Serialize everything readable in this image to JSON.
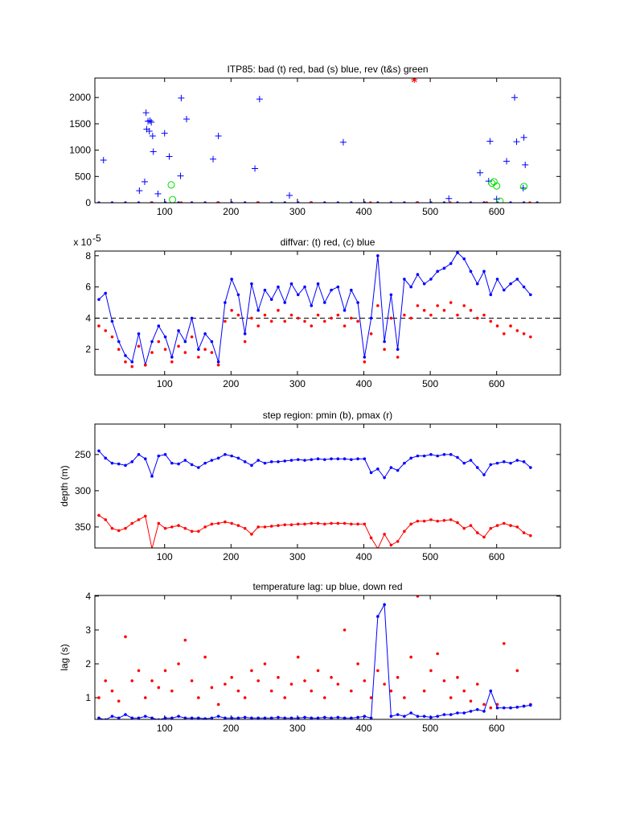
{
  "chart_data": [
    {
      "type": "scatter",
      "title": "ITP85: bad (t) red, bad (s) blue, rev (t&s) green",
      "xlim": [
        -5,
        696
      ],
      "xticks": [
        100,
        200,
        300,
        400,
        500,
        600
      ],
      "ylim": [
        0,
        2370
      ],
      "yticks": [
        0,
        500,
        1000,
        1500,
        2000
      ],
      "series": [
        {
          "color": "#0000ff",
          "marker": "dot",
          "x": [
            1,
            21,
            41,
            61,
            81,
            101,
            121,
            141,
            161,
            181,
            201,
            221,
            241,
            261,
            281,
            301,
            321,
            341,
            361,
            381,
            401,
            421,
            441,
            461,
            481,
            501,
            521,
            541,
            561,
            581,
            601,
            621,
            641,
            661
          ],
          "values": [
            0,
            0,
            0,
            0,
            0,
            0,
            0,
            0,
            0,
            0,
            0,
            0,
            0,
            0,
            0,
            0,
            0,
            0,
            0,
            0,
            0,
            0,
            0,
            0,
            0,
            0,
            0,
            0,
            0,
            0,
            0,
            0,
            0,
            0
          ]
        },
        {
          "color": "#ff0000",
          "marker": "dot",
          "x": [
            80,
            125,
            180,
            240,
            320,
            410,
            480,
            530,
            585,
            650
          ],
          "values": [
            0,
            0,
            0,
            0,
            0,
            0,
            0,
            0,
            0,
            0
          ]
        },
        {
          "color": "#0000ff",
          "marker": "plus",
          "x": [
            8,
            62,
            70,
            72,
            73,
            75,
            77,
            78,
            80,
            82,
            83,
            90,
            100,
            107,
            125,
            124,
            133,
            173,
            181,
            236,
            243,
            288,
            369,
            528,
            575,
            588,
            590,
            615,
            627,
            630,
            641,
            643,
            640,
            600
          ],
          "values": [
            810,
            230,
            400,
            1710,
            1400,
            1550,
            1360,
            1560,
            1530,
            1270,
            970,
            170,
            1320,
            880,
            1990,
            510,
            1590,
            830,
            1270,
            650,
            1970,
            140,
            1150,
            80,
            570,
            410,
            1170,
            790,
            2000,
            1160,
            1240,
            720,
            280,
            70
          ]
        },
        {
          "color": "#00dd00",
          "marker": "circle",
          "x": [
            110,
            112,
            593,
            596,
            600,
            641,
            605
          ],
          "values": [
            340,
            60,
            370,
            400,
            320,
            310,
            30
          ]
        },
        {
          "color": "#ff0000",
          "marker": "star",
          "x": [
            476
          ],
          "values": [
            2340
          ]
        }
      ]
    },
    {
      "type": "line",
      "title": "diffvar: (t) red, (c) blue",
      "y_scale": {
        "base": "x 10",
        "exponent": "-5"
      },
      "xlim": [
        -5,
        696
      ],
      "xticks": [
        100,
        200,
        300,
        400,
        500,
        600
      ],
      "ylim": [
        0.36,
        8.3
      ],
      "yticks": [
        2,
        4,
        6,
        8
      ],
      "hline": 4,
      "x": [
        1,
        11,
        21,
        31,
        41,
        51,
        61,
        71,
        81,
        91,
        101,
        111,
        121,
        131,
        141,
        151,
        161,
        171,
        181,
        191,
        201,
        211,
        221,
        231,
        241,
        251,
        261,
        271,
        281,
        291,
        301,
        311,
        321,
        331,
        341,
        351,
        361,
        371,
        381,
        391,
        401,
        411,
        421,
        431,
        441,
        451,
        461,
        471,
        481,
        491,
        501,
        511,
        521,
        531,
        541,
        551,
        561,
        571,
        581,
        591,
        601,
        611,
        621,
        631,
        641,
        651
      ],
      "series": [
        {
          "color": "#0000ff",
          "marker": "dot",
          "line": true,
          "values": [
            5.2,
            5.6,
            3.8,
            2.5,
            1.6,
            1.2,
            3.0,
            1.0,
            2.5,
            3.5,
            2.8,
            1.5,
            3.2,
            2.5,
            4.0,
            2.0,
            3.0,
            2.5,
            1.2,
            5.0,
            6.5,
            5.5,
            3.0,
            6.2,
            4.5,
            5.8,
            5.2,
            6.0,
            5.0,
            6.2,
            5.5,
            6.0,
            4.8,
            6.2,
            5.0,
            5.8,
            6.0,
            4.5,
            5.8,
            5.0,
            1.5,
            4.0,
            8.0,
            2.5,
            5.5,
            2.0,
            6.5,
            6.0,
            6.8,
            6.2,
            6.5,
            7.0,
            7.2,
            7.5,
            8.2,
            7.8,
            7.0,
            6.2,
            7.0,
            5.5,
            6.5,
            5.8,
            6.2,
            6.5,
            6.0,
            5.5
          ]
        },
        {
          "color": "#ff0000",
          "marker": "dot",
          "line": false,
          "values": [
            3.5,
            3.2,
            2.8,
            2.0,
            1.2,
            0.9,
            2.2,
            1.0,
            1.8,
            2.5,
            2.0,
            1.2,
            2.2,
            1.8,
            2.8,
            1.5,
            2.0,
            1.8,
            1.0,
            3.8,
            4.5,
            4.2,
            2.5,
            4.0,
            3.5,
            4.2,
            3.8,
            4.5,
            3.8,
            4.2,
            4.0,
            3.8,
            3.5,
            4.2,
            3.8,
            4.0,
            4.2,
            3.5,
            4.0,
            3.8,
            1.2,
            3.0,
            4.8,
            2.0,
            4.0,
            1.5,
            4.2,
            4.0,
            4.8,
            4.5,
            4.2,
            4.8,
            4.5,
            5.0,
            4.2,
            4.8,
            4.5,
            4.0,
            4.2,
            3.8,
            3.5,
            3.0,
            3.5,
            3.2,
            3.0,
            2.8
          ]
        }
      ]
    },
    {
      "type": "line",
      "title": "step region: pmin (b), pmax (r)",
      "ylabel": "depth (m)",
      "yreverse": true,
      "xlim": [
        -5,
        696
      ],
      "xticks": [
        100,
        200,
        300,
        400,
        500,
        600
      ],
      "ylim": [
        208,
        379
      ],
      "yticks": [
        250,
        300,
        350
      ],
      "x": [
        1,
        11,
        21,
        31,
        41,
        51,
        61,
        71,
        81,
        91,
        101,
        111,
        121,
        131,
        141,
        151,
        161,
        171,
        181,
        191,
        201,
        211,
        221,
        231,
        241,
        251,
        261,
        271,
        281,
        291,
        301,
        311,
        321,
        331,
        341,
        351,
        361,
        371,
        381,
        391,
        401,
        411,
        421,
        431,
        441,
        451,
        461,
        471,
        481,
        491,
        501,
        511,
        521,
        531,
        541,
        551,
        561,
        571,
        581,
        591,
        601,
        611,
        621,
        631,
        641,
        651
      ],
      "series": [
        {
          "color": "#0000ff",
          "marker": "dot",
          "line": true,
          "values": [
            245,
            255,
            262,
            263,
            265,
            260,
            250,
            256,
            280,
            252,
            250,
            262,
            263,
            258,
            264,
            268,
            262,
            258,
            255,
            250,
            252,
            255,
            260,
            265,
            258,
            262,
            260,
            260,
            259,
            258,
            257,
            258,
            257,
            256,
            257,
            256,
            256,
            256,
            257,
            256,
            256,
            275,
            270,
            282,
            268,
            272,
            262,
            255,
            252,
            252,
            250,
            252,
            250,
            250,
            254,
            262,
            258,
            268,
            278,
            264,
            262,
            260,
            262,
            258,
            260,
            268
          ]
        },
        {
          "color": "#ff0000",
          "marker": "dot",
          "line": true,
          "values": [
            334,
            340,
            352,
            355,
            352,
            345,
            340,
            335,
            380,
            345,
            352,
            350,
            348,
            352,
            356,
            356,
            350,
            346,
            345,
            343,
            345,
            348,
            352,
            360,
            350,
            350,
            349,
            348,
            347,
            347,
            346,
            346,
            345,
            345,
            346,
            345,
            345,
            345,
            346,
            346,
            346,
            365,
            380,
            360,
            375,
            370,
            356,
            346,
            342,
            342,
            340,
            342,
            341,
            340,
            344,
            352,
            348,
            358,
            364,
            352,
            348,
            345,
            348,
            350,
            358,
            362
          ]
        }
      ]
    },
    {
      "type": "line",
      "title": "temperature lag: up blue, down red",
      "ylabel": "lag (s)",
      "xlim": [
        -5,
        696
      ],
      "xticks": [
        100,
        200,
        300,
        400,
        500,
        600
      ],
      "ylim": [
        0.36,
        4.02
      ],
      "yticks": [
        1,
        2,
        3,
        4
      ],
      "x": [
        1,
        11,
        21,
        31,
        41,
        51,
        61,
        71,
        81,
        91,
        101,
        111,
        121,
        131,
        141,
        151,
        161,
        171,
        181,
        191,
        201,
        211,
        221,
        231,
        241,
        251,
        261,
        271,
        281,
        291,
        301,
        311,
        321,
        331,
        341,
        351,
        361,
        371,
        381,
        391,
        401,
        411,
        421,
        431,
        441,
        451,
        461,
        471,
        481,
        491,
        501,
        511,
        521,
        531,
        541,
        551,
        561,
        571,
        581,
        591,
        601,
        611,
        621,
        631,
        641,
        651
      ],
      "series": [
        {
          "color": "#ff0000",
          "marker": "dot",
          "line": false,
          "values": [
            1.0,
            1.5,
            1.2,
            0.9,
            2.8,
            1.5,
            1.8,
            1.0,
            1.5,
            1.3,
            1.8,
            1.2,
            2.0,
            2.7,
            1.5,
            1.0,
            2.2,
            1.3,
            0.8,
            1.4,
            1.6,
            1.2,
            1.0,
            1.8,
            1.5,
            2.0,
            1.2,
            1.6,
            1.0,
            1.4,
            2.2,
            1.5,
            1.2,
            1.8,
            1.0,
            1.6,
            1.4,
            3.0,
            1.2,
            2.0,
            1.5,
            1.0,
            1.8,
            1.4,
            1.2,
            1.6,
            1.0,
            2.2,
            4.0,
            1.2,
            1.8,
            2.3,
            1.5,
            1.0,
            1.6,
            1.2,
            0.9,
            1.4,
            0.8,
            0.7,
            0.8,
            2.6,
            0.7,
            1.8,
            0.75,
            0.8
          ]
        },
        {
          "color": "#0000ff",
          "marker": "dot",
          "line": true,
          "values": [
            0.4,
            0.35,
            0.45,
            0.4,
            0.5,
            0.4,
            0.4,
            0.45,
            0.4,
            0.35,
            0.4,
            0.4,
            0.45,
            0.4,
            0.4,
            0.4,
            0.38,
            0.4,
            0.45,
            0.4,
            0.4,
            0.4,
            0.42,
            0.4,
            0.4,
            0.4,
            0.4,
            0.42,
            0.4,
            0.4,
            0.4,
            0.42,
            0.4,
            0.4,
            0.42,
            0.4,
            0.42,
            0.4,
            0.4,
            0.42,
            0.45,
            0.4,
            3.4,
            3.75,
            0.45,
            0.5,
            0.45,
            0.55,
            0.45,
            0.45,
            0.42,
            0.45,
            0.5,
            0.5,
            0.55,
            0.55,
            0.6,
            0.65,
            0.6,
            1.2,
            0.7,
            0.7,
            0.7,
            0.72,
            0.75,
            0.78
          ]
        }
      ]
    }
  ]
}
